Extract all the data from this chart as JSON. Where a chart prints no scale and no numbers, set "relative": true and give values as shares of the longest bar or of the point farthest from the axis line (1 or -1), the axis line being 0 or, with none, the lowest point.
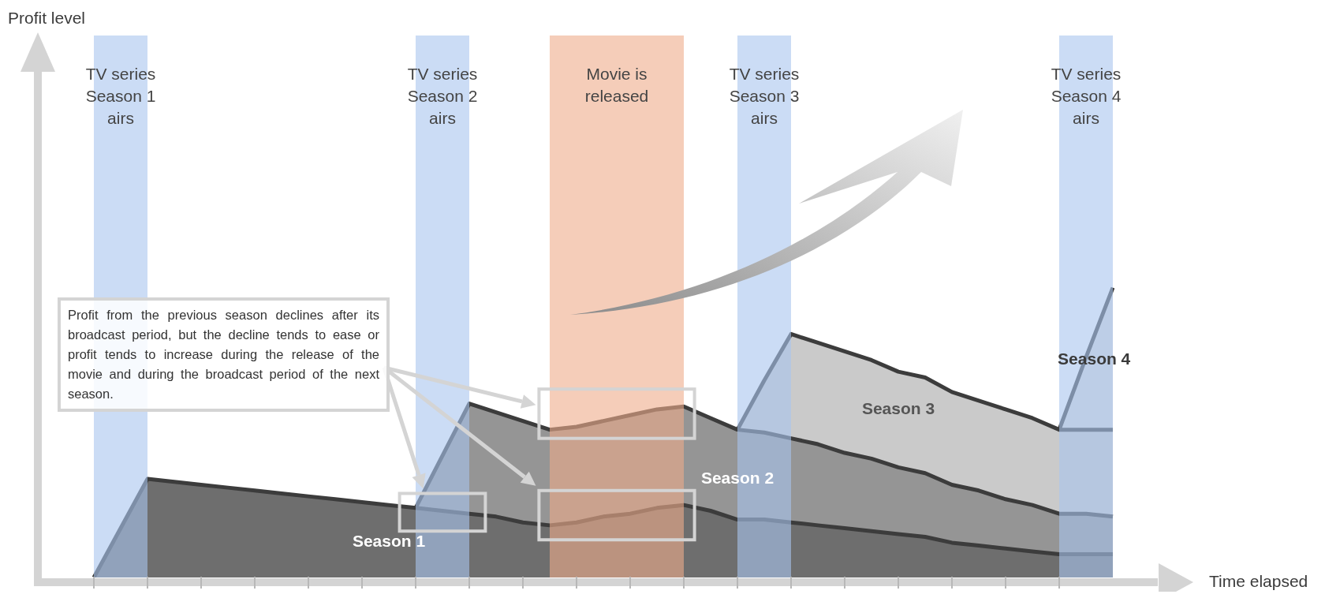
{
  "chart_data": {
    "type": "area",
    "stacked": true,
    "relative": true,
    "xlabel": "Time elapsed",
    "categories": [
      null,
      null,
      null,
      null,
      null,
      null,
      null,
      null,
      null,
      null,
      null,
      null,
      null,
      null,
      null,
      null,
      null,
      null,
      null,
      null,
      null,
      null,
      null,
      null,
      null,
      null,
      null,
      null,
      null,
      null,
      null,
      null,
      null,
      null,
      null,
      null,
      null,
      null,
      null
    ],
    "marker": "none",
    "legend": false,
    "series": [
      {
        "name": "Season 1",
        "color": "#6e6e6e",
        "values": [
          0,
          0.17,
          0.34,
          0.33,
          0.32,
          0.31,
          0.3,
          0.29,
          0.28,
          0.27,
          0.26,
          0.25,
          0.24,
          0.23,
          0.22,
          0.21,
          0.19,
          0.18,
          0.19,
          0.21,
          0.22,
          0.24,
          0.25,
          0.23,
          0.2,
          0.2,
          0.19,
          0.18,
          0.17,
          0.16,
          0.15,
          0.14,
          0.12,
          0.11,
          0.1,
          0.09,
          0.08,
          0.08,
          0.08
        ]
      },
      {
        "name": "Season 2",
        "color": "#959595",
        "values": [
          null,
          null,
          null,
          null,
          null,
          null,
          null,
          null,
          null,
          null,
          null,
          null,
          0,
          0.19,
          0.38,
          0.36,
          0.35,
          0.33,
          0.33,
          0.33,
          0.34,
          0.34,
          0.34,
          0.32,
          0.31,
          0.3,
          0.29,
          0.28,
          0.26,
          0.25,
          0.23,
          0.22,
          0.2,
          0.19,
          0.17,
          0.16,
          0.14,
          0.14,
          0.13
        ]
      },
      {
        "name": "Season 3",
        "color": "#cacaca",
        "values": [
          null,
          null,
          null,
          null,
          null,
          null,
          null,
          null,
          null,
          null,
          null,
          null,
          null,
          null,
          null,
          null,
          null,
          null,
          null,
          null,
          null,
          null,
          null,
          null,
          0,
          0.18,
          0.36,
          0.35,
          0.35,
          0.34,
          0.33,
          0.33,
          0.32,
          0.31,
          0.31,
          0.3,
          0.29,
          0.29,
          0.3
        ]
      },
      {
        "name": "Season 4",
        "color": "#dcdcdc",
        "values": [
          null,
          null,
          null,
          null,
          null,
          null,
          null,
          null,
          null,
          null,
          null,
          null,
          null,
          null,
          null,
          null,
          null,
          null,
          null,
          null,
          null,
          null,
          null,
          null,
          null,
          null,
          null,
          null,
          null,
          null,
          null,
          null,
          null,
          null,
          null,
          null,
          0,
          0.25,
          0.49
        ]
      }
    ],
    "annotations": [
      "Profit from the previous season declines after its broadcast period, but the decline tends to ease or profit tends to increase during the release of the movie and during the broadcast period of the next season.",
      "Profit level",
      "TV series\nSeason 1\nairs",
      "TV series\nSeason 2\nairs",
      "Movie is\nreleased",
      "TV series\nSeason 3\nairs",
      "TV series\nSeason 4\nairs"
    ]
  }
}
